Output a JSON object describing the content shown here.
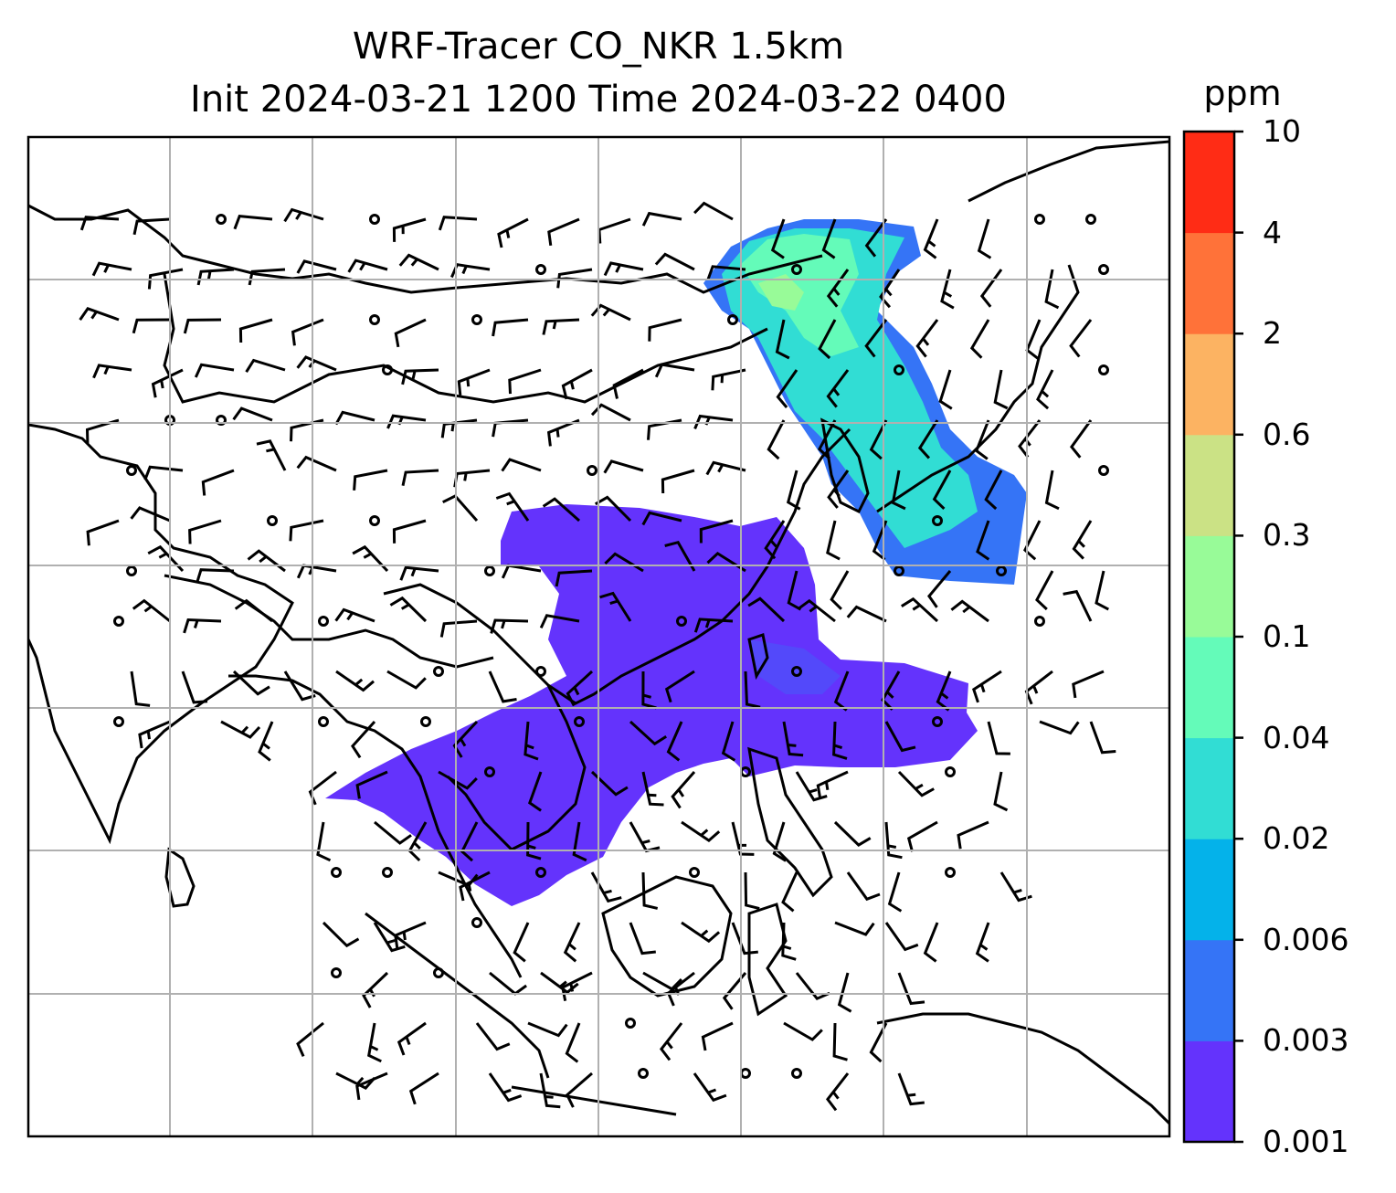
{
  "title": {
    "line1": "WRF-Tracer CO_NKR 1.5km",
    "line2": "Init 2024-03-21 1200 Time 2024-03-22 0400"
  },
  "colorbar": {
    "unit": "ppm",
    "levels": [
      "0.001",
      "0.003",
      "0.006",
      "0.02",
      "0.04",
      "0.1",
      "0.3",
      "0.6",
      "2",
      "4",
      "10"
    ],
    "colors": [
      "#6433FC",
      "#3574F6",
      "#04B2EA",
      "#31DDD4",
      "#64FBB9",
      "#98FB98",
      "#CBE285",
      "#FCB362",
      "#FF7239",
      "#FF2C15"
    ]
  },
  "map": {
    "plume_north_colors": [
      "#6433FC",
      "#3574F6",
      "#31DDD4",
      "#64FBB9",
      "#98FB98"
    ],
    "grid": "on",
    "wind_barbs": "on"
  }
}
